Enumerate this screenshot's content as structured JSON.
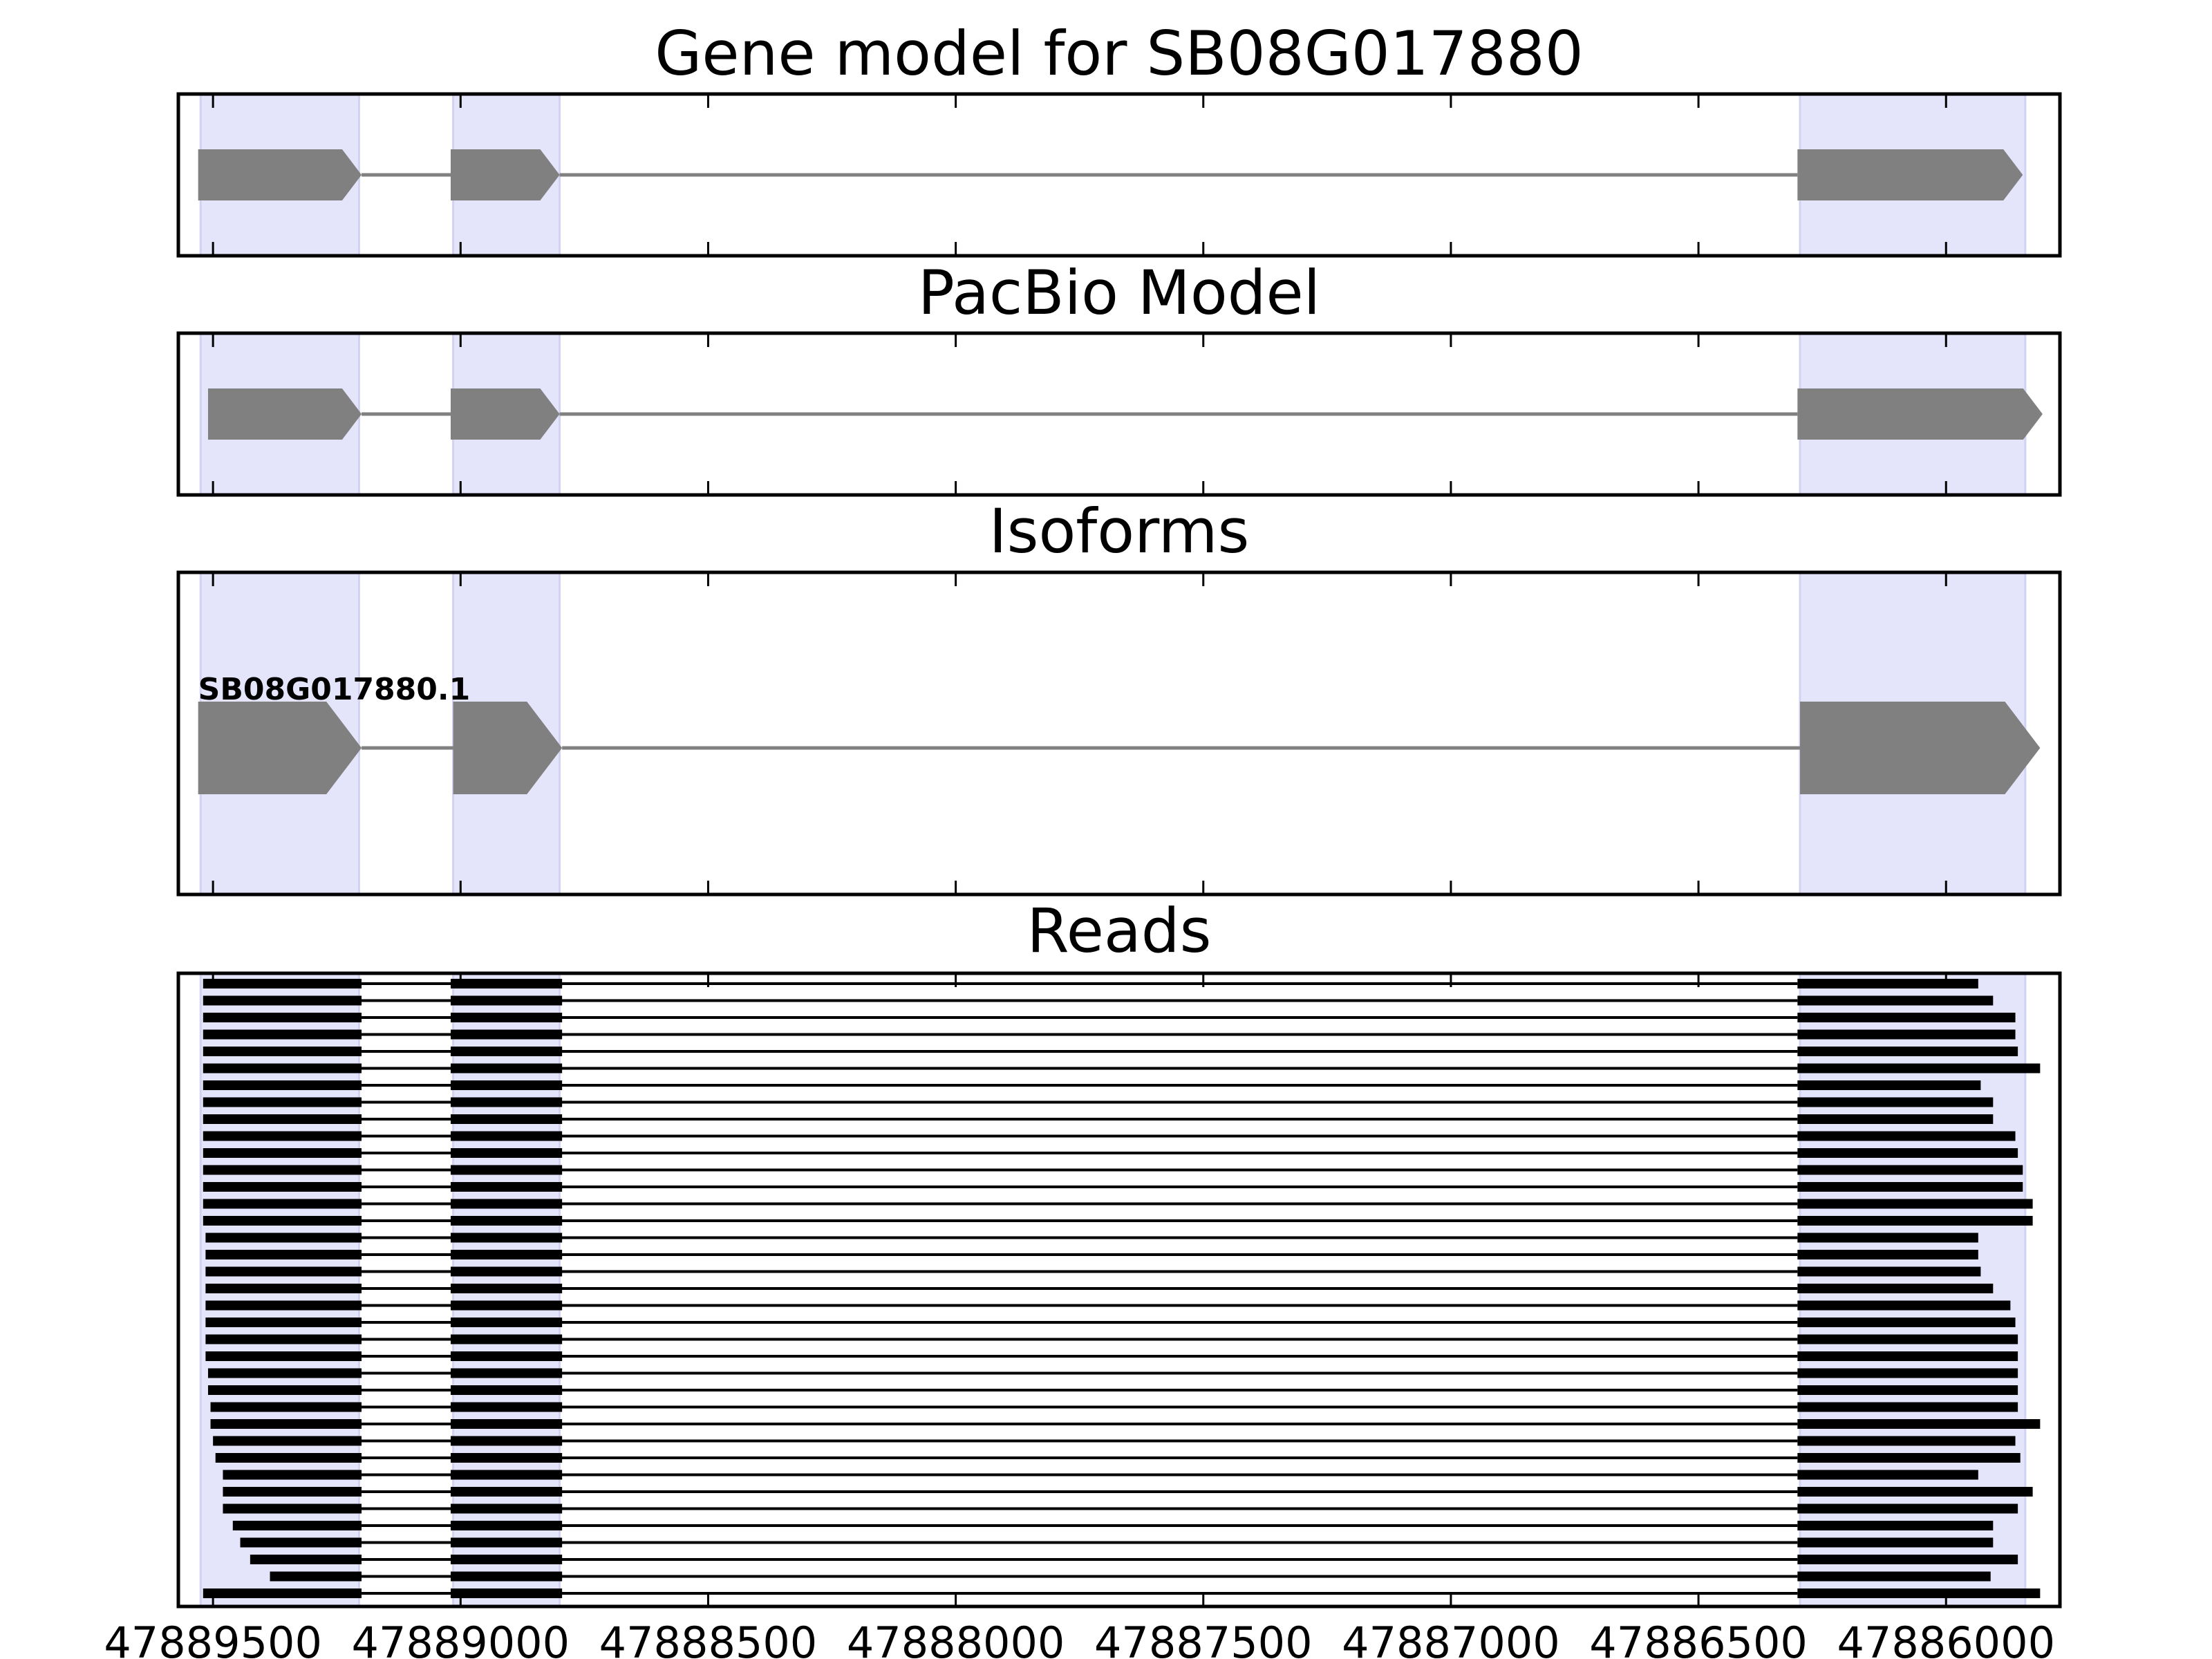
{
  "chart_data": [
    {
      "type": "gene-track",
      "title": "Gene model for SB08G017880",
      "exons": [
        [
          47889530,
          47889200
        ],
        [
          47889020,
          47888800
        ],
        [
          47886300,
          47885845
        ]
      ],
      "shaded": [
        [
          47889525,
          47889205
        ],
        [
          47889015,
          47888800
        ],
        [
          47886295,
          47885840
        ]
      ]
    },
    {
      "type": "gene-track",
      "title": "PacBio Model",
      "exons": [
        [
          47889510,
          47889200
        ],
        [
          47889020,
          47888800
        ],
        [
          47886300,
          47885805
        ]
      ],
      "shaded": [
        [
          47889525,
          47889205
        ],
        [
          47889015,
          47888800
        ],
        [
          47886295,
          47885840
        ]
      ]
    },
    {
      "type": "gene-track",
      "title": "Isoforms",
      "isoform_label": "SB08G017880.1",
      "exons": [
        [
          47889530,
          47889200
        ],
        [
          47889015,
          47888795
        ],
        [
          47886295,
          47885810
        ]
      ],
      "shaded": [
        [
          47889525,
          47889205
        ],
        [
          47889015,
          47888800
        ],
        [
          47886295,
          47885840
        ]
      ]
    },
    {
      "type": "reads",
      "title": "Reads",
      "exon2": [
        47889020,
        47888795
      ],
      "exon3_start": 47886300,
      "shaded": [
        [
          47889525,
          47889205
        ],
        [
          47889015,
          47888800
        ],
        [
          47886295,
          47885840
        ]
      ],
      "reads": [
        [
          47889520,
          47885935
        ],
        [
          47889520,
          47885905
        ],
        [
          47889520,
          47885860
        ],
        [
          47889520,
          47885860
        ],
        [
          47889520,
          47885855
        ],
        [
          47889520,
          47885810
        ],
        [
          47889520,
          47885930
        ],
        [
          47889520,
          47885905
        ],
        [
          47889520,
          47885905
        ],
        [
          47889520,
          47885860
        ],
        [
          47889520,
          47885855
        ],
        [
          47889520,
          47885845
        ],
        [
          47889520,
          47885845
        ],
        [
          47889520,
          47885825
        ],
        [
          47889520,
          47885825
        ],
        [
          47889515,
          47885935
        ],
        [
          47889515,
          47885935
        ],
        [
          47889515,
          47885930
        ],
        [
          47889515,
          47885905
        ],
        [
          47889515,
          47885870
        ],
        [
          47889515,
          47885860
        ],
        [
          47889515,
          47885855
        ],
        [
          47889515,
          47885855
        ],
        [
          47889510,
          47885855
        ],
        [
          47889510,
          47885855
        ],
        [
          47889505,
          47885855
        ],
        [
          47889505,
          47885810
        ],
        [
          47889500,
          47885860
        ],
        [
          47889495,
          47885850
        ],
        [
          47889480,
          47885935
        ],
        [
          47889480,
          47885825
        ],
        [
          47889480,
          47885855
        ],
        [
          47889460,
          47885905
        ],
        [
          47889445,
          47885905
        ],
        [
          47889425,
          47885855
        ],
        [
          47889385,
          47885910
        ],
        [
          47889520,
          47885810
        ]
      ]
    }
  ],
  "x_axis": {
    "domain": [
      47889570,
      47885770
    ],
    "ticks": [
      47889500,
      47889000,
      47888500,
      47888000,
      47887500,
      47887000,
      47886500,
      47886000
    ]
  }
}
